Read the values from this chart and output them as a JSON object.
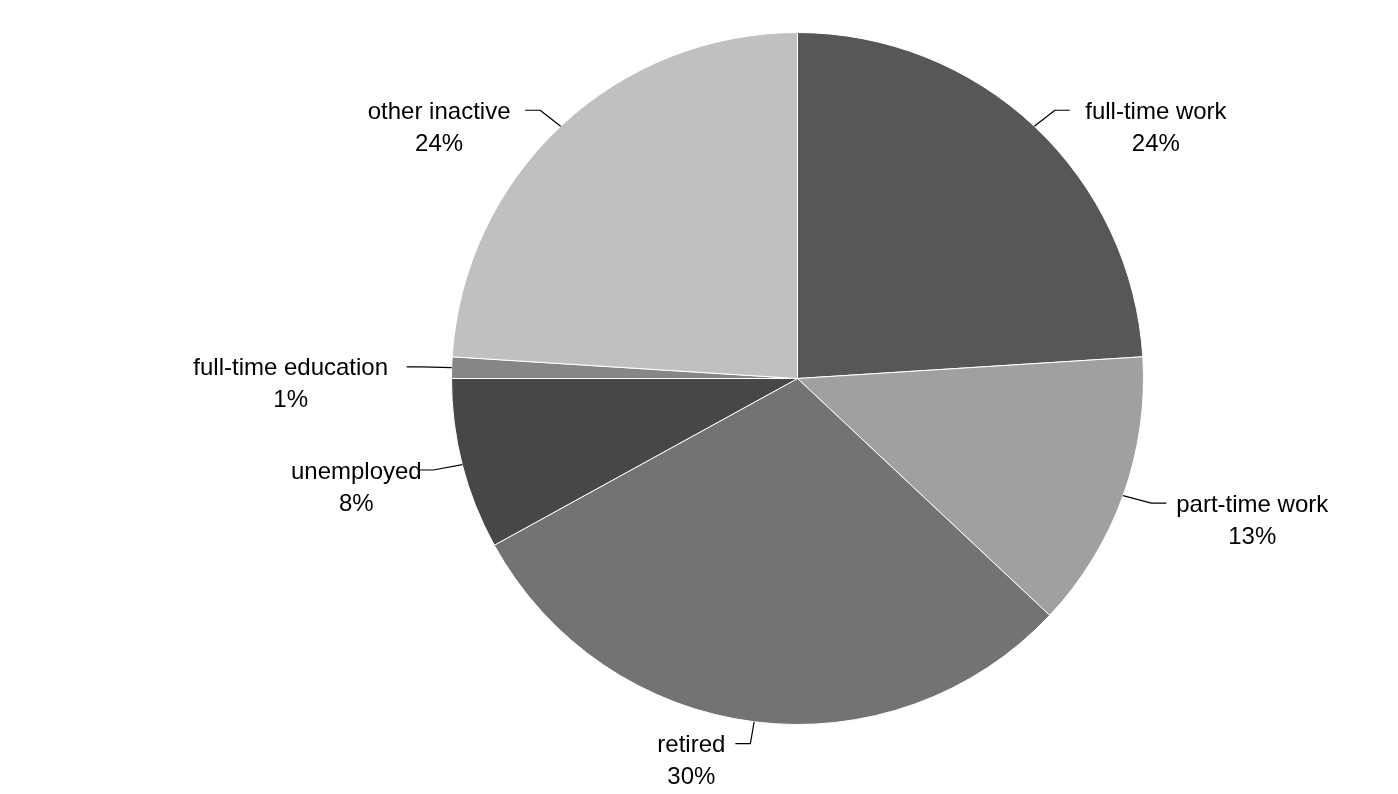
{
  "chart_data": {
    "type": "pie",
    "categories": [
      "full-time work",
      "part-time work",
      "retired",
      "unemployed",
      "full-time education",
      "other inactive"
    ],
    "values": [
      24,
      13,
      30,
      8,
      1,
      24
    ],
    "value_labels": [
      "24%",
      "13%",
      "30%",
      "8%",
      "1%",
      "24%"
    ],
    "colors": [
      "#575757",
      "#a0a0a0",
      "#737373",
      "#474747",
      "#868686",
      "#c0c0c0"
    ]
  }
}
